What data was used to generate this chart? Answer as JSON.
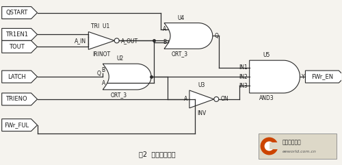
{
  "title": "图2  触发控制电路",
  "bg_color": "#f5f3ee",
  "line_color": "#2a2a2a",
  "text_color": "#1a1a1a",
  "figsize": [
    5.0,
    2.41
  ],
  "dpi": 100,
  "inputs": [
    "QSTART",
    "TR1EN1",
    "TOUT",
    "LATCH",
    "TRIENO",
    "FWr_FUL"
  ],
  "output_label": "FWr_EN"
}
